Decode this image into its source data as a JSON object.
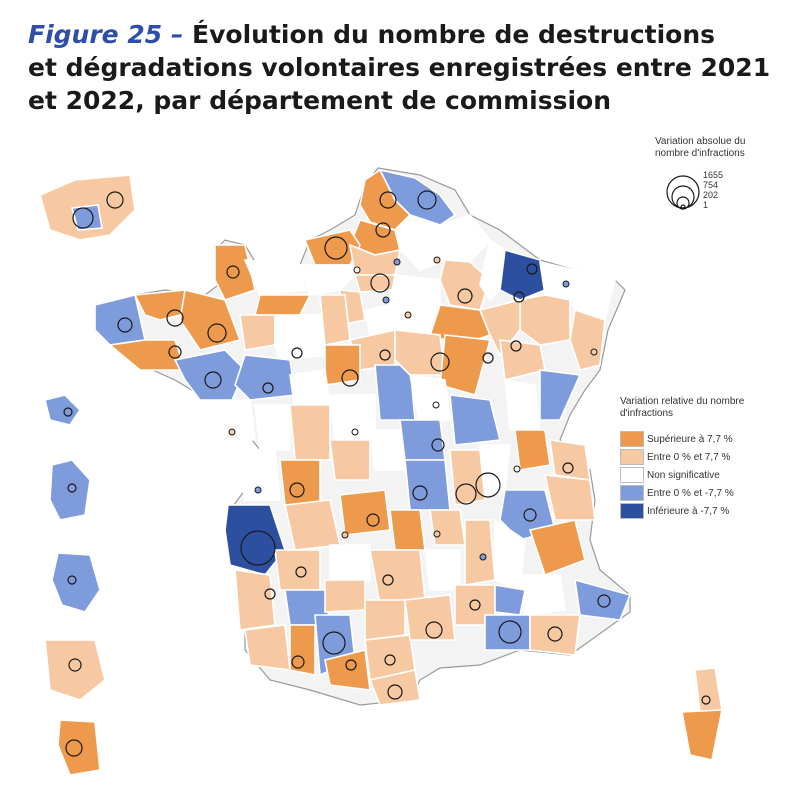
{
  "title": {
    "figure_label": "Figure 25 –",
    "line1": " Évolution du nombre de destructions",
    "line2": "et dégradations volontaires enregistrées entre 2021",
    "line3": "et 2022, par département de commission"
  },
  "legend_size": {
    "title_line1": "Variation absolue du",
    "title_line2": "nombre d'infractions",
    "values": [
      "1655",
      "754",
      "202",
      "1"
    ]
  },
  "legend_color": {
    "title_line1": "Variation relative du nombre",
    "title_line2": "d'infractions",
    "classes": [
      {
        "label": "Supérieure à 7,7 %",
        "color": "#ee9a4d"
      },
      {
        "label": "Entre 0 % et 7,7 %",
        "color": "#f6c9a2"
      },
      {
        "label": "Non significative",
        "color": "#ffffff"
      },
      {
        "label": "Entre 0 % et -7,7 %",
        "color": "#7e9bdb"
      },
      {
        "label": "Inférieure à -7,7 %",
        "color": "#2d4fa0"
      }
    ]
  },
  "colors": {
    "high_increase": "#ee9a4d",
    "low_increase": "#f6c9a2",
    "not_significant": "#ffffff",
    "low_decrease": "#7e9bdb",
    "high_decrease": "#2d4fa0",
    "outline": "#9a9a9a"
  }
}
